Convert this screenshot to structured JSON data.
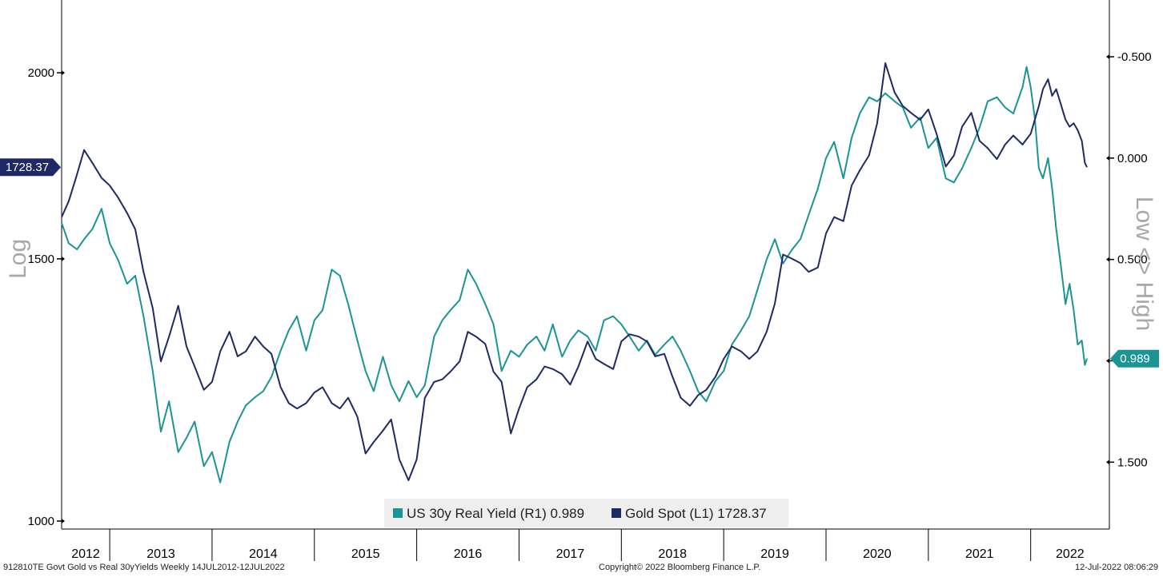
{
  "chart_data": {
    "type": "line",
    "frequency": "Weekly",
    "left_axis": {
      "label": "Log",
      "scale": "log",
      "ticks": [
        1000,
        1500,
        2000
      ],
      "range": [
        1000,
        2230
      ],
      "tick_labels": [
        "1000",
        "1500",
        "2000"
      ]
    },
    "right_axis": {
      "label": "Low <> High",
      "inverted": true,
      "range": [
        -0.78,
        1.83
      ],
      "ticks": [
        -0.5,
        0.0,
        0.5,
        1.0,
        1.5
      ],
      "tick_labels": [
        "-0.500",
        "0.000",
        "0.500",
        "1.000",
        "1.500"
      ]
    },
    "x_axis": {
      "range": [
        2012.53,
        2022.55
      ],
      "year_labels": [
        "2012",
        "2013",
        "2014",
        "2015",
        "2016",
        "2017",
        "2018",
        "2019",
        "2020",
        "2021",
        "2022"
      ]
    },
    "series": [
      {
        "name": "US 30y Real Yield (R1)",
        "axis": "right",
        "color": "#1a9494",
        "last_value": "0.989",
        "points": [
          [
            2012.53,
            0.32
          ],
          [
            2012.6,
            0.42
          ],
          [
            2012.68,
            0.45
          ],
          [
            2012.75,
            0.4
          ],
          [
            2012.83,
            0.35
          ],
          [
            2012.92,
            0.25
          ],
          [
            2013.0,
            0.42
          ],
          [
            2013.08,
            0.5
          ],
          [
            2013.17,
            0.62
          ],
          [
            2013.25,
            0.58
          ],
          [
            2013.33,
            0.78
          ],
          [
            2013.42,
            1.05
          ],
          [
            2013.5,
            1.35
          ],
          [
            2013.58,
            1.2
          ],
          [
            2013.67,
            1.45
          ],
          [
            2013.75,
            1.38
          ],
          [
            2013.83,
            1.3
          ],
          [
            2013.92,
            1.52
          ],
          [
            2014.0,
            1.45
          ],
          [
            2014.08,
            1.6
          ],
          [
            2014.17,
            1.4
          ],
          [
            2014.25,
            1.3
          ],
          [
            2014.33,
            1.22
          ],
          [
            2014.42,
            1.18
          ],
          [
            2014.5,
            1.15
          ],
          [
            2014.58,
            1.08
          ],
          [
            2014.67,
            0.95
          ],
          [
            2014.75,
            0.85
          ],
          [
            2014.83,
            0.78
          ],
          [
            2014.92,
            0.95
          ],
          [
            2015.0,
            0.8
          ],
          [
            2015.08,
            0.75
          ],
          [
            2015.17,
            0.55
          ],
          [
            2015.25,
            0.58
          ],
          [
            2015.33,
            0.72
          ],
          [
            2015.42,
            0.9
          ],
          [
            2015.5,
            1.05
          ],
          [
            2015.58,
            1.15
          ],
          [
            2015.67,
            0.98
          ],
          [
            2015.75,
            1.12
          ],
          [
            2015.83,
            1.2
          ],
          [
            2015.92,
            1.1
          ],
          [
            2016.0,
            1.18
          ],
          [
            2016.08,
            1.12
          ],
          [
            2016.17,
            0.88
          ],
          [
            2016.25,
            0.8
          ],
          [
            2016.33,
            0.75
          ],
          [
            2016.42,
            0.7
          ],
          [
            2016.5,
            0.55
          ],
          [
            2016.58,
            0.62
          ],
          [
            2016.67,
            0.72
          ],
          [
            2016.75,
            0.82
          ],
          [
            2016.83,
            1.05
          ],
          [
            2016.92,
            0.95
          ],
          [
            2017.0,
            0.98
          ],
          [
            2017.08,
            0.92
          ],
          [
            2017.17,
            0.88
          ],
          [
            2017.25,
            0.95
          ],
          [
            2017.33,
            0.82
          ],
          [
            2017.42,
            0.98
          ],
          [
            2017.5,
            0.9
          ],
          [
            2017.58,
            0.85
          ],
          [
            2017.67,
            0.88
          ],
          [
            2017.75,
            0.95
          ],
          [
            2017.83,
            0.8
          ],
          [
            2017.92,
            0.78
          ],
          [
            2018.0,
            0.82
          ],
          [
            2018.08,
            0.88
          ],
          [
            2018.17,
            0.95
          ],
          [
            2018.25,
            0.9
          ],
          [
            2018.33,
            0.97
          ],
          [
            2018.42,
            0.92
          ],
          [
            2018.5,
            0.88
          ],
          [
            2018.58,
            0.95
          ],
          [
            2018.67,
            1.05
          ],
          [
            2018.75,
            1.15
          ],
          [
            2018.83,
            1.2
          ],
          [
            2018.92,
            1.1
          ],
          [
            2019.0,
            1.05
          ],
          [
            2019.08,
            0.92
          ],
          [
            2019.17,
            0.85
          ],
          [
            2019.25,
            0.78
          ],
          [
            2019.33,
            0.65
          ],
          [
            2019.42,
            0.5
          ],
          [
            2019.5,
            0.4
          ],
          [
            2019.58,
            0.52
          ],
          [
            2019.67,
            0.45
          ],
          [
            2019.75,
            0.4
          ],
          [
            2019.83,
            0.28
          ],
          [
            2019.92,
            0.15
          ],
          [
            2020.0,
            0.0
          ],
          [
            2020.08,
            -0.08
          ],
          [
            2020.17,
            0.1
          ],
          [
            2020.25,
            -0.1
          ],
          [
            2020.33,
            -0.22
          ],
          [
            2020.42,
            -0.3
          ],
          [
            2020.5,
            -0.28
          ],
          [
            2020.58,
            -0.32
          ],
          [
            2020.67,
            -0.28
          ],
          [
            2020.75,
            -0.25
          ],
          [
            2020.83,
            -0.15
          ],
          [
            2020.92,
            -0.2
          ],
          [
            2021.0,
            -0.05
          ],
          [
            2021.08,
            -0.1
          ],
          [
            2021.17,
            0.1
          ],
          [
            2021.25,
            0.12
          ],
          [
            2021.33,
            0.05
          ],
          [
            2021.42,
            -0.05
          ],
          [
            2021.5,
            -0.15
          ],
          [
            2021.58,
            -0.28
          ],
          [
            2021.67,
            -0.3
          ],
          [
            2021.75,
            -0.25
          ],
          [
            2021.83,
            -0.22
          ],
          [
            2021.92,
            -0.35
          ],
          [
            2021.96,
            -0.45
          ],
          [
            2022.0,
            -0.35
          ],
          [
            2022.04,
            -0.2
          ],
          [
            2022.08,
            0.05
          ],
          [
            2022.12,
            0.1
          ],
          [
            2022.17,
            0.0
          ],
          [
            2022.21,
            0.15
          ],
          [
            2022.25,
            0.35
          ],
          [
            2022.3,
            0.55
          ],
          [
            2022.34,
            0.72
          ],
          [
            2022.38,
            0.62
          ],
          [
            2022.42,
            0.75
          ],
          [
            2022.46,
            0.92
          ],
          [
            2022.5,
            0.9
          ],
          [
            2022.53,
            1.02
          ],
          [
            2022.55,
            0.989
          ]
        ]
      },
      {
        "name": "Gold Spot (L1)",
        "axis": "left",
        "color": "#1e2a66",
        "last_value": "1728.37",
        "points": [
          [
            2012.53,
            1600
          ],
          [
            2012.6,
            1640
          ],
          [
            2012.67,
            1700
          ],
          [
            2012.75,
            1775
          ],
          [
            2012.83,
            1740
          ],
          [
            2012.92,
            1700
          ],
          [
            2013.0,
            1680
          ],
          [
            2013.08,
            1650
          ],
          [
            2013.17,
            1610
          ],
          [
            2013.25,
            1570
          ],
          [
            2013.33,
            1470
          ],
          [
            2013.42,
            1390
          ],
          [
            2013.5,
            1280
          ],
          [
            2013.58,
            1330
          ],
          [
            2013.67,
            1395
          ],
          [
            2013.75,
            1310
          ],
          [
            2013.83,
            1270
          ],
          [
            2013.92,
            1225
          ],
          [
            2014.0,
            1240
          ],
          [
            2014.08,
            1300
          ],
          [
            2014.17,
            1340
          ],
          [
            2014.25,
            1290
          ],
          [
            2014.33,
            1300
          ],
          [
            2014.42,
            1330
          ],
          [
            2014.5,
            1310
          ],
          [
            2014.58,
            1295
          ],
          [
            2014.67,
            1230
          ],
          [
            2014.75,
            1200
          ],
          [
            2014.83,
            1190
          ],
          [
            2014.92,
            1200
          ],
          [
            2015.0,
            1220
          ],
          [
            2015.08,
            1230
          ],
          [
            2015.17,
            1200
          ],
          [
            2015.25,
            1190
          ],
          [
            2015.33,
            1210
          ],
          [
            2015.42,
            1175
          ],
          [
            2015.5,
            1110
          ],
          [
            2015.58,
            1130
          ],
          [
            2015.67,
            1150
          ],
          [
            2015.75,
            1170
          ],
          [
            2015.83,
            1100
          ],
          [
            2015.92,
            1065
          ],
          [
            2016.0,
            1100
          ],
          [
            2016.08,
            1210
          ],
          [
            2016.17,
            1240
          ],
          [
            2016.25,
            1245
          ],
          [
            2016.33,
            1260
          ],
          [
            2016.42,
            1280
          ],
          [
            2016.5,
            1340
          ],
          [
            2016.58,
            1330
          ],
          [
            2016.67,
            1315
          ],
          [
            2016.75,
            1260
          ],
          [
            2016.83,
            1240
          ],
          [
            2016.92,
            1145
          ],
          [
            2017.0,
            1190
          ],
          [
            2017.08,
            1230
          ],
          [
            2017.17,
            1245
          ],
          [
            2017.25,
            1270
          ],
          [
            2017.33,
            1265
          ],
          [
            2017.42,
            1255
          ],
          [
            2017.5,
            1235
          ],
          [
            2017.58,
            1270
          ],
          [
            2017.67,
            1320
          ],
          [
            2017.75,
            1285
          ],
          [
            2017.83,
            1275
          ],
          [
            2017.92,
            1265
          ],
          [
            2018.0,
            1320
          ],
          [
            2018.08,
            1335
          ],
          [
            2018.17,
            1330
          ],
          [
            2018.25,
            1320
          ],
          [
            2018.33,
            1290
          ],
          [
            2018.42,
            1295
          ],
          [
            2018.5,
            1250
          ],
          [
            2018.58,
            1210
          ],
          [
            2018.67,
            1195
          ],
          [
            2018.75,
            1215
          ],
          [
            2018.83,
            1225
          ],
          [
            2018.92,
            1250
          ],
          [
            2019.0,
            1285
          ],
          [
            2019.08,
            1310
          ],
          [
            2019.17,
            1300
          ],
          [
            2019.25,
            1285
          ],
          [
            2019.33,
            1300
          ],
          [
            2019.42,
            1340
          ],
          [
            2019.5,
            1400
          ],
          [
            2019.58,
            1510
          ],
          [
            2019.67,
            1500
          ],
          [
            2019.75,
            1490
          ],
          [
            2019.83,
            1470
          ],
          [
            2019.92,
            1480
          ],
          [
            2020.0,
            1560
          ],
          [
            2020.08,
            1600
          ],
          [
            2020.17,
            1590
          ],
          [
            2020.25,
            1680
          ],
          [
            2020.33,
            1720
          ],
          [
            2020.42,
            1760
          ],
          [
            2020.5,
            1850
          ],
          [
            2020.58,
            2030
          ],
          [
            2020.67,
            1940
          ],
          [
            2020.75,
            1900
          ],
          [
            2020.83,
            1880
          ],
          [
            2020.92,
            1860
          ],
          [
            2021.0,
            1890
          ],
          [
            2021.08,
            1820
          ],
          [
            2021.17,
            1730
          ],
          [
            2021.25,
            1760
          ],
          [
            2021.33,
            1840
          ],
          [
            2021.42,
            1880
          ],
          [
            2021.5,
            1800
          ],
          [
            2021.58,
            1780
          ],
          [
            2021.67,
            1750
          ],
          [
            2021.75,
            1790
          ],
          [
            2021.83,
            1815
          ],
          [
            2021.92,
            1790
          ],
          [
            2022.0,
            1820
          ],
          [
            2022.08,
            1900
          ],
          [
            2022.12,
            1950
          ],
          [
            2022.17,
            1980
          ],
          [
            2022.21,
            1930
          ],
          [
            2022.25,
            1950
          ],
          [
            2022.3,
            1900
          ],
          [
            2022.34,
            1860
          ],
          [
            2022.38,
            1840
          ],
          [
            2022.42,
            1850
          ],
          [
            2022.46,
            1830
          ],
          [
            2022.5,
            1800
          ],
          [
            2022.53,
            1740
          ],
          [
            2022.55,
            1728.37
          ]
        ]
      }
    ]
  },
  "legend": [
    {
      "label": "US 30y Real Yield (R1) 0.989",
      "color": "#1a9494"
    },
    {
      "label": "Gold Spot (L1) 1728.37",
      "color": "#1e2a66"
    }
  ],
  "tags": {
    "gold_last": "1728.37",
    "yield_last": "0.989"
  },
  "footer": {
    "left": "912810TE Govt Gold vs Real 30yYields  Weekly 14JUL2012-12JUL2022",
    "center": "Copyright© 2022 Bloomberg Finance L.P.",
    "right": "12-Jul-2022 08:06:29"
  },
  "colors": {
    "yield": "#1a9494",
    "gold": "#1e2a66",
    "axis_label": "#a8a8a8"
  }
}
